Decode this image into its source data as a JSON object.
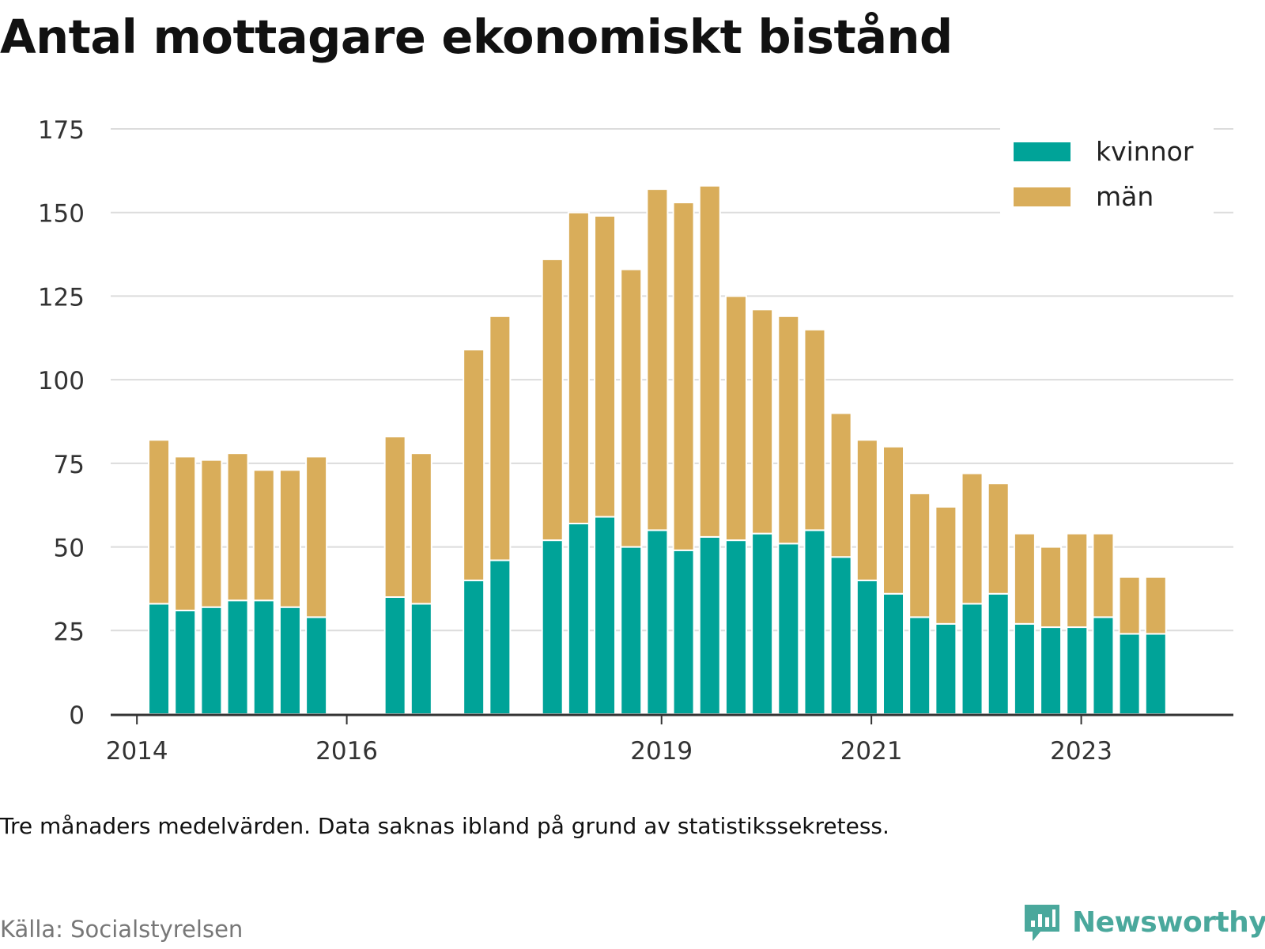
{
  "title": "Antal mottagare ekonomiskt bistånd",
  "footnote": "Tre månaders medelvärden. Data saknas ibland på grund av statistikssekretess.",
  "source": "Källa: Socialstyrelsen",
  "brand": {
    "name": "Newsworthy",
    "icon": "newsworthy-logo-icon"
  },
  "colors": {
    "kvinnor": "#00a398",
    "man": "#d9ad5a",
    "grid": "#dcdcdc",
    "axis": "#333333"
  },
  "chart_data": {
    "type": "bar",
    "stacked": true,
    "x_unit": "year",
    "xlim": [
      2013.75,
      2024.45
    ],
    "ylim": [
      0,
      175
    ],
    "y_ticks": [
      "0",
      "25",
      "50",
      "75",
      "100",
      "125",
      "150",
      "175"
    ],
    "x_ticks": [
      "2014",
      "2016",
      "2019",
      "2021",
      "2023"
    ],
    "x_tick_values": [
      2014,
      2016,
      2019,
      2021,
      2023
    ],
    "legend_position": "top-right",
    "grid": true,
    "x": [
      2014.21,
      2014.46,
      2014.71,
      2014.96,
      2015.21,
      2015.46,
      2015.71,
      2016.46,
      2016.71,
      2017.21,
      2017.46,
      2017.96,
      2018.21,
      2018.46,
      2018.71,
      2018.96,
      2019.21,
      2019.46,
      2019.71,
      2019.96,
      2020.21,
      2020.46,
      2020.71,
      2020.96,
      2021.21,
      2021.46,
      2021.71,
      2021.96,
      2022.21,
      2022.46,
      2022.71,
      2022.96,
      2023.21,
      2023.46,
      2023.71
    ],
    "series": [
      {
        "name": "kvinnor",
        "values": [
          33,
          31,
          32,
          34,
          34,
          32,
          29,
          35,
          33,
          40,
          46,
          52,
          57,
          59,
          50,
          55,
          49,
          53,
          52,
          54,
          51,
          55,
          47,
          40,
          36,
          29,
          27,
          33,
          36,
          27,
          26,
          26,
          29,
          24,
          24
        ]
      },
      {
        "name": "män",
        "values": [
          49,
          46,
          44,
          44,
          39,
          41,
          48,
          48,
          45,
          69,
          73,
          84,
          93,
          90,
          83,
          102,
          104,
          105,
          73,
          67,
          68,
          60,
          43,
          42,
          44,
          37,
          35,
          39,
          33,
          27,
          24,
          28,
          25,
          17,
          17
        ]
      }
    ]
  }
}
